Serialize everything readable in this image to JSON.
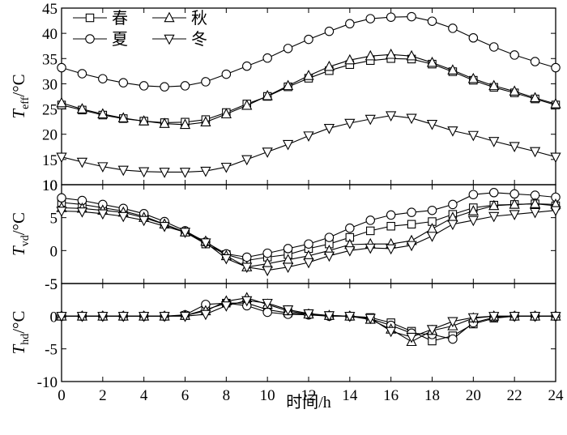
{
  "chart_data": {
    "type": "line",
    "xlabel": "时间/h",
    "xlim": [
      0,
      24
    ],
    "xticks": [
      0,
      2,
      4,
      6,
      8,
      10,
      12,
      14,
      16,
      18,
      20,
      22,
      24
    ],
    "x": [
      0,
      1,
      2,
      3,
      4,
      5,
      6,
      7,
      8,
      9,
      10,
      11,
      12,
      13,
      14,
      15,
      16,
      17,
      18,
      19,
      20,
      21,
      22,
      23,
      24
    ],
    "legend": {
      "placement": "top-left",
      "entries": [
        "春",
        "夏",
        "秋",
        "冬"
      ]
    },
    "panels": [
      {
        "id": "teff",
        "ylabel": {
          "symbol": "T",
          "sub": "eff",
          "unit": "/°C"
        },
        "ylim": [
          10,
          45
        ],
        "yticks": [
          10,
          15,
          20,
          25,
          30,
          35,
          40,
          45
        ],
        "series": [
          {
            "name": "春",
            "marker": "square",
            "values": [
              25.8,
              24.8,
              23.8,
              23.1,
              22.6,
              22.3,
              22.4,
              22.9,
              24.3,
              26.0,
              27.5,
              29.4,
              31.1,
              32.6,
              33.8,
              34.6,
              35.0,
              34.9,
              33.9,
              32.4,
              30.7,
              29.3,
              28.2,
              27.0,
              25.8
            ]
          },
          {
            "name": "夏",
            "marker": "circle",
            "values": [
              33.2,
              32.0,
              31.0,
              30.2,
              29.6,
              29.4,
              29.6,
              30.4,
              31.9,
              33.5,
              35.1,
              37.0,
              38.8,
              40.4,
              41.9,
              42.9,
              43.2,
              43.3,
              42.4,
              41.0,
              39.1,
              37.3,
              35.7,
              34.4,
              33.2
            ]
          },
          {
            "name": "秋",
            "marker": "triangle-up",
            "values": [
              26.2,
              25.0,
              24.0,
              23.2,
              22.6,
              22.1,
              21.9,
              22.4,
              24.0,
              25.7,
              27.6,
              29.6,
              31.6,
              33.4,
              34.7,
              35.5,
              35.8,
              35.5,
              34.2,
              32.7,
              31.0,
              29.6,
              28.5,
              27.2,
              26.0
            ]
          },
          {
            "name": "冬",
            "marker": "triangle-down",
            "values": [
              15.5,
              14.5,
              13.6,
              12.9,
              12.6,
              12.5,
              12.5,
              12.7,
              13.5,
              15.0,
              16.5,
              18.0,
              19.7,
              21.2,
              22.2,
              23.0,
              23.7,
              23.2,
              22.0,
              20.7,
              19.8,
              18.6,
              17.6,
              16.6,
              15.5
            ]
          }
        ]
      },
      {
        "id": "tvd",
        "ylabel": {
          "symbol": "T",
          "sub": "vd",
          "unit": "/°C"
        },
        "ylim": [
          -5,
          10
        ],
        "yticks": [
          -5,
          0,
          5,
          10
        ],
        "series": [
          {
            "name": "春",
            "marker": "square",
            "values": [
              7.3,
              7.0,
              6.5,
              6.0,
              5.2,
              4.0,
              2.8,
              1.0,
              -0.6,
              -1.5,
              -1.0,
              -0.6,
              0.3,
              1.0,
              2.0,
              3.0,
              3.7,
              4.0,
              4.4,
              5.5,
              6.5,
              6.9,
              7.0,
              7.1,
              6.8
            ]
          },
          {
            "name": "夏",
            "marker": "circle",
            "values": [
              8.0,
              7.6,
              7.0,
              6.4,
              5.6,
              4.4,
              3.0,
              1.3,
              -0.5,
              -1.0,
              -0.4,
              0.3,
              1.0,
              2.0,
              3.4,
              4.6,
              5.4,
              5.8,
              6.1,
              7.0,
              8.5,
              8.8,
              8.6,
              8.4,
              8.1
            ]
          },
          {
            "name": "秋",
            "marker": "triangle-up",
            "values": [
              6.5,
              6.4,
              6.1,
              5.8,
              5.0,
              4.0,
              2.8,
              1.4,
              -0.8,
              -2.5,
              -2.0,
              -1.4,
              -0.8,
              0.0,
              0.9,
              1.0,
              1.0,
              1.5,
              3.3,
              5.0,
              6.0,
              6.8,
              7.0,
              7.1,
              7.0
            ]
          },
          {
            "name": "冬",
            "marker": "triangle-down",
            "values": [
              6.0,
              5.9,
              5.6,
              5.2,
              4.6,
              3.7,
              2.8,
              1.2,
              -1.2,
              -2.5,
              -3.0,
              -2.5,
              -1.8,
              -0.8,
              0.0,
              0.4,
              0.3,
              0.8,
              2.2,
              4.0,
              4.6,
              5.2,
              5.5,
              5.8,
              6.1
            ]
          }
        ]
      },
      {
        "id": "thd",
        "ylabel": {
          "symbol": "T",
          "sub": "hd",
          "unit": "/°C"
        },
        "ylim": [
          -10,
          5
        ],
        "yticks": [
          -10,
          -5,
          0,
          5
        ],
        "series": [
          {
            "name": "春",
            "marker": "square",
            "values": [
              0,
              0,
              0,
              0,
              0,
              0,
              0.1,
              1.0,
              2.0,
              2.0,
              1.0,
              0.5,
              0.3,
              0.1,
              0,
              -0.2,
              -1.0,
              -2.3,
              -3.8,
              -3.0,
              -1.2,
              -0.3,
              0,
              0,
              0
            ]
          },
          {
            "name": "夏",
            "marker": "circle",
            "values": [
              0,
              0,
              0,
              0,
              0,
              0,
              0.2,
              1.8,
              2.0,
              1.6,
              0.6,
              0.3,
              0.2,
              0,
              0,
              -0.4,
              -1.4,
              -2.6,
              -2.8,
              -3.5,
              -1.0,
              -0.2,
              0,
              0,
              0
            ]
          },
          {
            "name": "秋",
            "marker": "triangle-up",
            "values": [
              0,
              0,
              0,
              0,
              0,
              0,
              0.1,
              0.8,
              2.3,
              2.8,
              1.8,
              0.8,
              0.3,
              0.1,
              0,
              -0.5,
              -2.0,
              -3.9,
              -2.2,
              -1.5,
              -0.3,
              0,
              0,
              0,
              0
            ]
          },
          {
            "name": "冬",
            "marker": "triangle-down",
            "values": [
              0,
              0,
              0,
              0,
              0,
              0,
              0,
              0.3,
              1.6,
              2.4,
              2.0,
              1.0,
              0.4,
              0.1,
              0,
              -0.3,
              -2.3,
              -3.2,
              -2.0,
              -0.8,
              -0.2,
              0,
              0,
              0,
              0
            ]
          }
        ]
      }
    ]
  }
}
